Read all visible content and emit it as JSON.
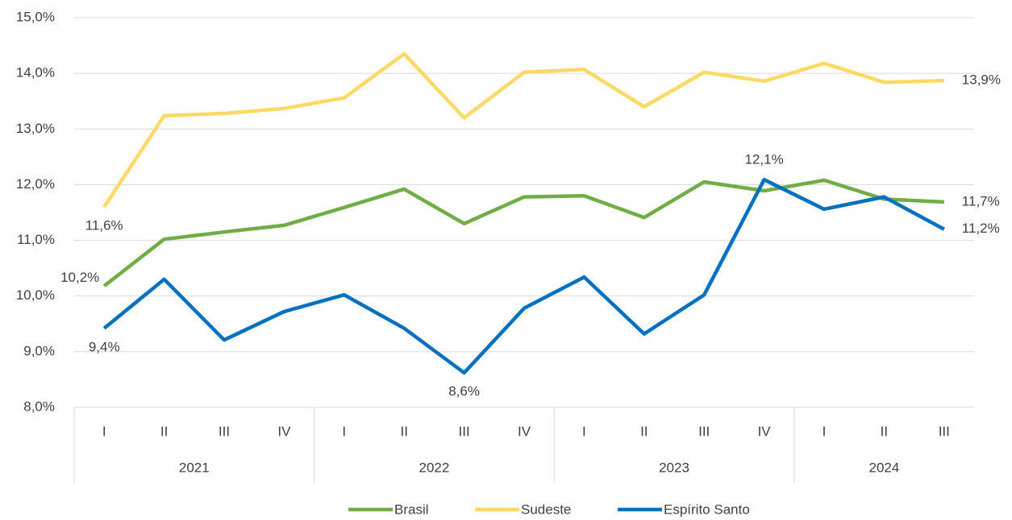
{
  "chart_data": {
    "type": "line",
    "categories": [
      "I",
      "II",
      "III",
      "IV",
      "I",
      "II",
      "III",
      "IV",
      "I",
      "II",
      "III",
      "IV",
      "I",
      "II",
      "III"
    ],
    "groups": [
      {
        "label": "2021",
        "span": 4
      },
      {
        "label": "2022",
        "span": 4
      },
      {
        "label": "2023",
        "span": 4
      },
      {
        "label": "2024",
        "span": 3
      }
    ],
    "series": [
      {
        "name": "Brasil",
        "color": "#70ad47",
        "values": [
          10.18,
          11.02,
          11.15,
          11.27,
          11.59,
          11.92,
          11.3,
          11.78,
          11.8,
          11.41,
          12.05,
          11.89,
          12.08,
          11.74,
          11.69
        ],
        "value_labels": [
          "10,2%",
          null,
          null,
          null,
          null,
          null,
          null,
          null,
          null,
          null,
          null,
          null,
          null,
          null,
          "11,7%"
        ]
      },
      {
        "name": "Sudeste",
        "color": "#ffd966",
        "values": [
          11.6,
          13.24,
          13.28,
          13.37,
          13.56,
          14.35,
          13.2,
          14.02,
          14.07,
          13.4,
          14.02,
          13.86,
          14.18,
          13.84,
          13.87
        ],
        "value_labels": [
          "11,6%",
          null,
          null,
          null,
          null,
          null,
          null,
          null,
          null,
          null,
          null,
          null,
          null,
          null,
          "13,9%"
        ]
      },
      {
        "name": "Espírito Santo",
        "color": "#0070c0",
        "values": [
          9.42,
          10.3,
          9.21,
          9.72,
          10.02,
          9.42,
          8.62,
          9.78,
          10.34,
          9.32,
          10.02,
          12.09,
          11.56,
          11.78,
          11.2
        ],
        "value_labels": [
          "9,4%",
          null,
          null,
          null,
          null,
          null,
          "8,6%",
          null,
          null,
          null,
          null,
          "12,1%",
          null,
          null,
          "11,2%"
        ]
      }
    ],
    "ylim": [
      8,
      15
    ],
    "yticks": [
      {
        "value": 8,
        "label": "8,0%"
      },
      {
        "value": 9,
        "label": "9,0%"
      },
      {
        "value": 10,
        "label": "10,0%"
      },
      {
        "value": 11,
        "label": "11,0%"
      },
      {
        "value": 12,
        "label": "12,0%"
      },
      {
        "value": 13,
        "label": "13,0%"
      },
      {
        "value": 14,
        "label": "14,0%"
      },
      {
        "value": 15,
        "label": "15,0%"
      }
    ],
    "grid": true,
    "legend": "bottom"
  }
}
